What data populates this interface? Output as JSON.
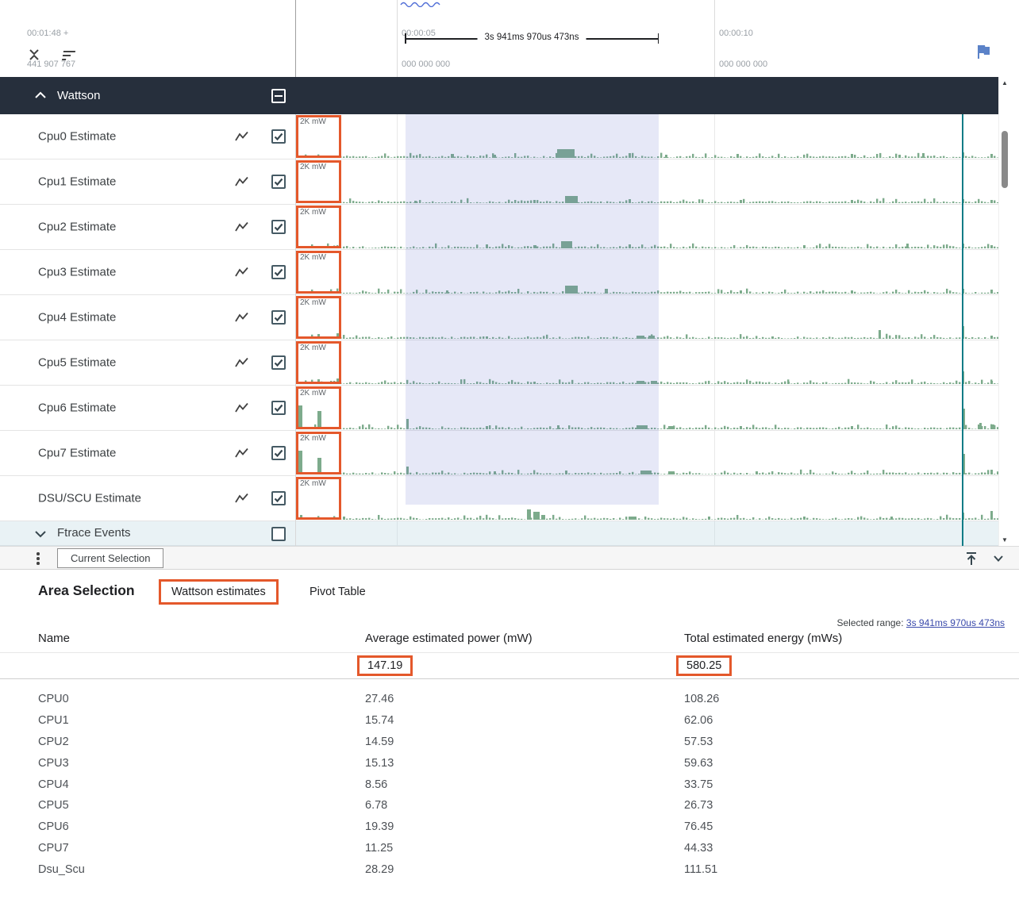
{
  "timeline": {
    "markers": [
      {
        "time": "00:01:48 +",
        "sub": "441 907 767"
      },
      {
        "time": "00:00:05",
        "sub": "000 000 000"
      },
      {
        "time": "00:00:10",
        "sub": "000 000 000"
      }
    ],
    "span_label": "3s 941ms 970us 473ns"
  },
  "tracks": {
    "group_header": "Wattson",
    "scale_label": "2K mW",
    "items": [
      "Cpu0 Estimate",
      "Cpu1 Estimate",
      "Cpu2 Estimate",
      "Cpu3 Estimate",
      "Cpu4 Estimate",
      "Cpu5 Estimate",
      "Cpu6 Estimate",
      "Cpu7 Estimate",
      "DSU/SCU Estimate"
    ],
    "ftrace_label": "Ftrace Events"
  },
  "bottom_bar": {
    "tab": "Current Selection"
  },
  "details": {
    "heading": "Area Selection",
    "tabs": [
      "Wattson estimates",
      "Pivot Table"
    ],
    "selected_range_label": "Selected range: ",
    "selected_range_value": "3s 941ms 970us 473ns",
    "table": {
      "columns": [
        "Name",
        "Average estimated power (mW)",
        "Total estimated energy (mWs)"
      ],
      "totals": {
        "avg": "147.19",
        "total": "580.25"
      },
      "rows": [
        {
          "name": "CPU0",
          "avg": "27.46",
          "total": "108.26"
        },
        {
          "name": "CPU1",
          "avg": "15.74",
          "total": "62.06"
        },
        {
          "name": "CPU2",
          "avg": "14.59",
          "total": "57.53"
        },
        {
          "name": "CPU3",
          "avg": "15.13",
          "total": "59.63"
        },
        {
          "name": "CPU4",
          "avg": "8.56",
          "total": "33.75"
        },
        {
          "name": "CPU5",
          "avg": "6.78",
          "total": "26.73"
        },
        {
          "name": "CPU6",
          "avg": "19.39",
          "total": "76.45"
        },
        {
          "name": "CPU7",
          "avg": "11.25",
          "total": "44.33"
        },
        {
          "name": "Dsu_Scu",
          "avg": "28.29",
          "total": "111.51"
        }
      ]
    }
  },
  "colors": {
    "annotation_orange": "#e4582b",
    "header_dark": "#262f3c",
    "waveform_green": "#7dab8c",
    "selection_overlay": "#6270cc",
    "marker_teal": "#0e7c86",
    "link_blue": "#3949ab",
    "flag_blue": "#5b82c8"
  }
}
